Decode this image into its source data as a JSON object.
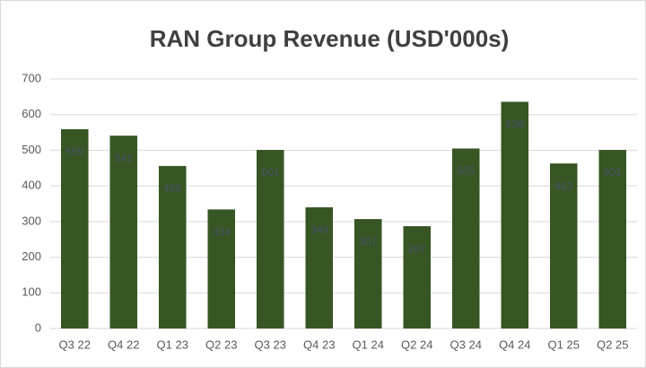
{
  "chart_data": {
    "type": "bar",
    "title": "RAN Group Revenue (USD'000s)",
    "categories": [
      "Q3 22",
      "Q4 22",
      "Q1 23",
      "Q2 23",
      "Q3 23",
      "Q4 23",
      "Q1 24",
      "Q2 24",
      "Q3 24",
      "Q4 24",
      "Q1 25",
      "Q2 25"
    ],
    "values": [
      559,
      541,
      456,
      334,
      501,
      340,
      307,
      287,
      505,
      636,
      463,
      501
    ],
    "color": "#375623",
    "ylim": [
      0,
      700
    ],
    "yticks": [
      0,
      100,
      200,
      300,
      400,
      500,
      600,
      700
    ],
    "grid": true
  }
}
